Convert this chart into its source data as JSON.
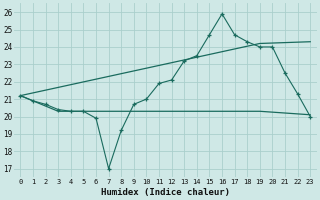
{
  "xlabel": "Humidex (Indice chaleur)",
  "xlim": [
    -0.5,
    23.5
  ],
  "ylim": [
    16.5,
    26.5
  ],
  "yticks": [
    17,
    18,
    19,
    20,
    21,
    22,
    23,
    24,
    25,
    26
  ],
  "xticks": [
    0,
    1,
    2,
    3,
    4,
    5,
    6,
    7,
    8,
    9,
    10,
    11,
    12,
    13,
    14,
    15,
    16,
    17,
    18,
    19,
    20,
    21,
    22,
    23
  ],
  "bg_color": "#cfe8e6",
  "grid_color": "#aacfcc",
  "line_color": "#1a6b5e",
  "line1_x": [
    0,
    1,
    2,
    3,
    4,
    5,
    6,
    7,
    8,
    9,
    10,
    11,
    12,
    13,
    14,
    15,
    16,
    17,
    18,
    19,
    20,
    21,
    22,
    23
  ],
  "line1_y": [
    21.2,
    20.9,
    20.7,
    20.4,
    20.3,
    20.3,
    19.9,
    17.0,
    19.2,
    20.7,
    21.0,
    21.9,
    22.1,
    23.2,
    23.5,
    24.7,
    25.9,
    24.7,
    24.3,
    24.0,
    24.0,
    22.5,
    21.3,
    20.0
  ],
  "line2_x": [
    0,
    19,
    23
  ],
  "line2_y": [
    21.2,
    24.2,
    24.3
  ],
  "line3_x": [
    0,
    3,
    19,
    23
  ],
  "line3_y": [
    21.2,
    20.3,
    20.3,
    20.1
  ]
}
